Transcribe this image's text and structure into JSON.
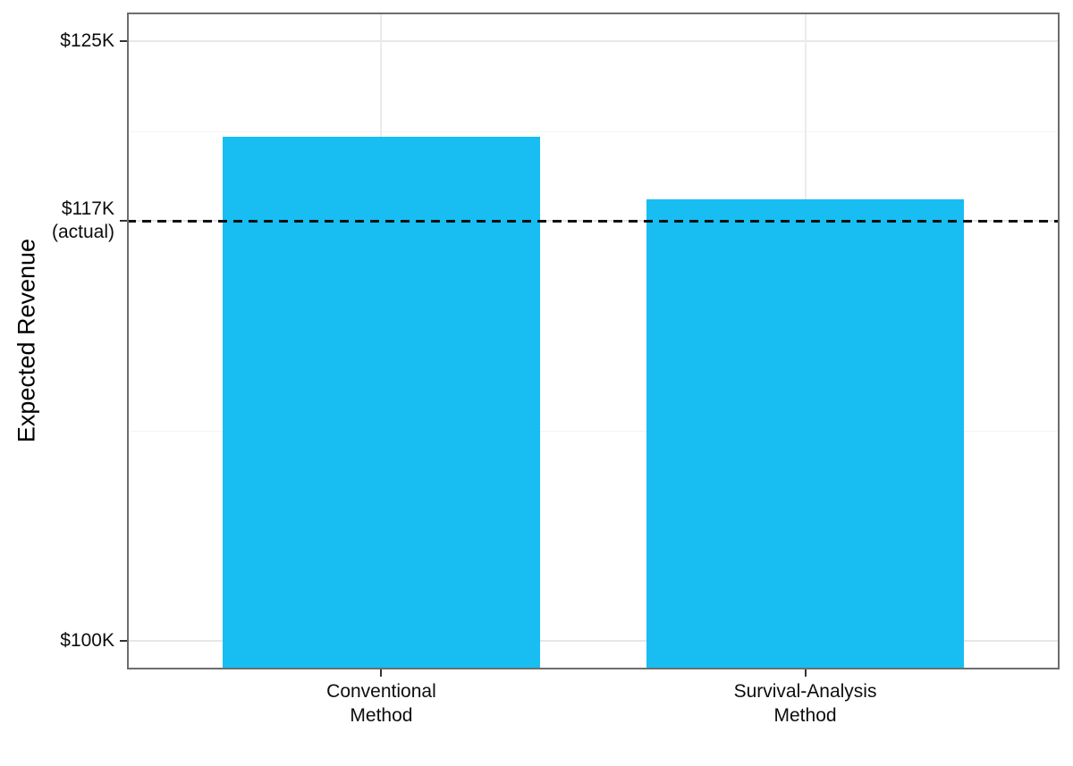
{
  "chart_data": {
    "type": "bar",
    "title": "",
    "xlabel": "",
    "ylabel": "Expected Revenue",
    "categories": [
      "Conventional\nMethod",
      "Survival-Analysis\nMethod"
    ],
    "values": [
      121.0,
      118.4
    ],
    "value_unit": "thousand_dollars",
    "ylim": [
      98.8,
      126.2
    ],
    "y_ticks": [
      {
        "value": 125,
        "label": "$125K"
      },
      {
        "value": 117.5,
        "label": "$117K\n(actual)"
      },
      {
        "value": 100,
        "label": "$100K"
      }
    ],
    "y_minor_ticks": [
      121.25,
      108.75
    ],
    "reference_line": {
      "value": 117.5,
      "style": "dashed",
      "meaning": "actual revenue"
    },
    "grid": true,
    "legend": "none"
  },
  "colors": {
    "bar_fill": "#18bdf2",
    "panel_border": "#6d6d6d",
    "grid_major": "#e7e7e7",
    "grid_minor": "#f4f4f4",
    "reference_line": "#111111",
    "tick_mark": "#333333",
    "text": "#0d0d0d"
  }
}
